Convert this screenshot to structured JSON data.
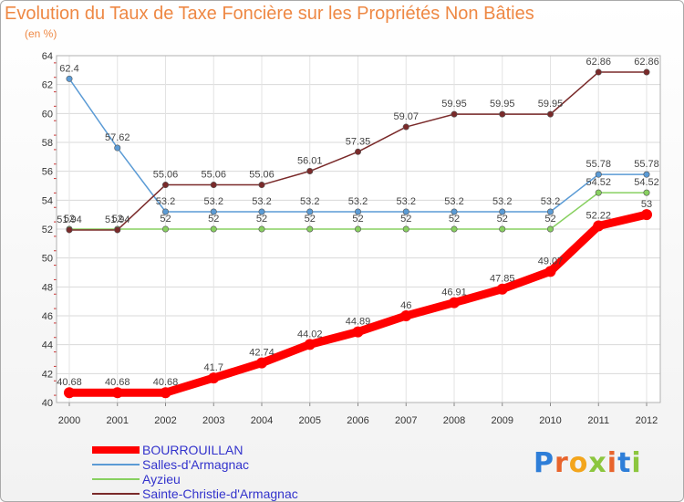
{
  "page": {
    "title": "Evolution du Taux de Taxe Foncière sur les Propriétés Non Bâties",
    "subtitle": "(en %)"
  },
  "logo": {
    "letters": [
      "P",
      "r",
      "o",
      "x",
      "i",
      "t",
      "i"
    ],
    "colors": [
      "#2e7ed8",
      "#e8642c",
      "#f3a51c",
      "#8cc63e",
      "#e8642c",
      "#2e7ed8",
      "#8cc63e"
    ]
  },
  "chart_data": {
    "type": "line",
    "x": [
      "2000",
      "2001",
      "2002",
      "2003",
      "2004",
      "2005",
      "2006",
      "2007",
      "2008",
      "2009",
      "2010",
      "2011",
      "2012"
    ],
    "ylim": [
      40,
      64
    ],
    "yticks": [
      "40",
      "42",
      "44",
      "46",
      "48",
      "50",
      "52",
      "54",
      "56",
      "58",
      "60",
      "62",
      "64"
    ],
    "grid": true,
    "legend_placement": "bottom-left",
    "series": [
      {
        "name": "BOURROUILLAN",
        "color": "#ff0000",
        "values": [
          40.68,
          40.68,
          40.68,
          41.7,
          42.74,
          44.02,
          44.89,
          46,
          46.91,
          47.85,
          49.07,
          52.22,
          53
        ],
        "labels": [
          "40.68",
          "40.68",
          "40.68",
          "41.7",
          "42.74",
          "44.02",
          "44.89",
          "46",
          "46.91",
          "47.85",
          "49.07",
          "52.22",
          "53"
        ]
      },
      {
        "name": "Salles-d'Armagnac",
        "color": "#5b9bd5",
        "values": [
          62.4,
          57.62,
          53.2,
          53.2,
          53.2,
          53.2,
          53.2,
          53.2,
          53.2,
          53.2,
          53.2,
          55.78,
          55.78
        ],
        "labels": [
          "62.4",
          "57.62",
          "53.2",
          "53.2",
          "53.2",
          "53.2",
          "53.2",
          "53.2",
          "53.2",
          "53.2",
          "53.2",
          "55.78",
          "55.78"
        ]
      },
      {
        "name": "Ayzieu",
        "color": "#88d060",
        "values": [
          52,
          52,
          52,
          52,
          52,
          52,
          52,
          52,
          52,
          52,
          52,
          54.52,
          54.52
        ],
        "labels": [
          "52",
          "52",
          "52",
          "52",
          "52",
          "52",
          "52",
          "52",
          "52",
          "52",
          "52",
          "54.52",
          "54.52"
        ]
      },
      {
        "name": "Sainte-Christie-d'Armagnac",
        "color": "#7a2a2a",
        "values": [
          51.94,
          51.94,
          55.06,
          55.06,
          55.06,
          56.01,
          57.35,
          59.07,
          59.95,
          59.95,
          59.95,
          62.86,
          62.86
        ],
        "labels": [
          "51.94",
          "51.94",
          "55.06",
          "55.06",
          "55.06",
          "56.01",
          "57.35",
          "59.07",
          "59.95",
          "59.95",
          "59.95",
          "62.86",
          "62.86"
        ]
      }
    ]
  }
}
